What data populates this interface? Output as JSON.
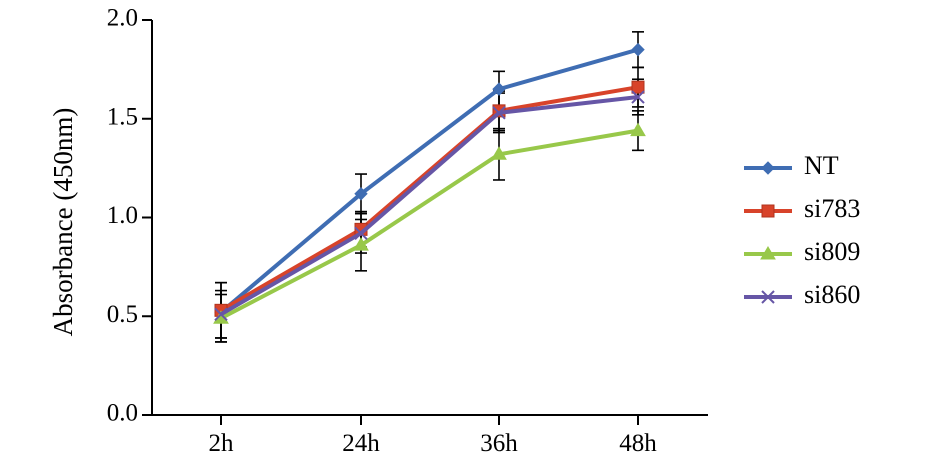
{
  "chart_data": {
    "type": "line",
    "ylabel": "Absorbance (450nm)",
    "xlabel": "",
    "categories": [
      "2h",
      "24h",
      "36h",
      "48h"
    ],
    "ylim": [
      0.0,
      2.0
    ],
    "yticks": [
      "0.0",
      "0.5",
      "1.0",
      "1.5",
      "2.0"
    ],
    "legend_position": "right",
    "series": [
      {
        "name": "NT",
        "color": "#3f6db3",
        "marker": "diamond",
        "values": [
          0.52,
          1.12,
          1.65,
          1.85
        ],
        "errors": [
          0.15,
          0.1,
          0.09,
          0.09
        ]
      },
      {
        "name": "si783",
        "color": "#d8432a",
        "marker": "square",
        "values": [
          0.53,
          0.94,
          1.54,
          1.66
        ],
        "errors": [
          0.14,
          0.09,
          0.1,
          0.1
        ]
      },
      {
        "name": "si809",
        "color": "#98c84a",
        "marker": "triangle",
        "values": [
          0.49,
          0.86,
          1.32,
          1.44
        ],
        "errors": [
          0.12,
          0.13,
          0.13,
          0.1
        ]
      },
      {
        "name": "si860",
        "color": "#6656a6",
        "marker": "x",
        "values": [
          0.51,
          0.92,
          1.53,
          1.61
        ],
        "errors": [
          0.12,
          0.1,
          0.1,
          0.09
        ]
      }
    ]
  }
}
